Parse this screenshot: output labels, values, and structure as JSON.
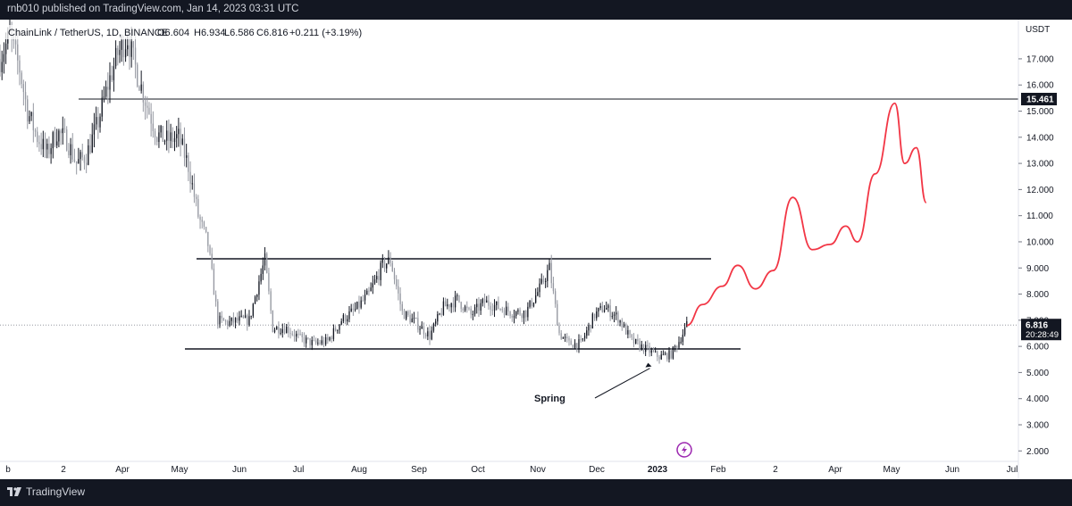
{
  "header": {
    "published_line": "rnb010 published on TradingView.com, Jan 14, 2023 03:31 UTC"
  },
  "symbol_line": {
    "name": "ChainLink / TetherUS, 1D, BINANCE",
    "open": "O6.604",
    "high": "H6.934",
    "low": "L6.586",
    "close": "C6.816",
    "change": "+0.211 (+3.19%)"
  },
  "footer": {
    "brand": "TradingView"
  },
  "colors": {
    "accent": "#f23645",
    "candle_up": "#131722",
    "candle_down": "#9598a1",
    "lightning": "#9c27b0"
  },
  "icons": {
    "brand": "tradingview-logo-icon",
    "lightning": "lightning-icon"
  },
  "chart_data": {
    "type": "candlestick",
    "currency_label": "USDT",
    "y_axis": {
      "range": [
        1.6,
        18.5
      ],
      "ticks": [
        "2.000",
        "3.000",
        "4.000",
        "5.000",
        "6.000",
        "7.000",
        "8.000",
        "9.000",
        "10.000",
        "11.000",
        "12.000",
        "13.000",
        "14.000",
        "15.000",
        "16.000",
        "17.000"
      ]
    },
    "x_axis": {
      "range": [
        "2022-01-29",
        "2023-07-02"
      ],
      "ticks": [
        "b",
        "2",
        "Apr",
        "May",
        "Jun",
        "Jul",
        "Aug",
        "Sep",
        "Oct",
        "Nov",
        "Dec",
        "2023",
        "Feb",
        "2",
        "Apr",
        "May",
        "Jun",
        "Jul"
      ]
    },
    "current_price": {
      "value": 6.816,
      "label": "6.816",
      "countdown": "20:28:49"
    },
    "resistance": {
      "value": 15.461,
      "label": "15.461"
    },
    "range_top": 9.35,
    "range_bottom": 5.9,
    "annotations": [
      {
        "text": "Spring",
        "date": "2022-12-28",
        "value": 5.3
      }
    ],
    "price_path": [
      [
        "2022-01-29",
        17.0
      ],
      [
        "2022-02-03",
        17.9
      ],
      [
        "2022-02-08",
        16.6
      ],
      [
        "2022-02-12",
        15.0
      ],
      [
        "2022-02-17",
        14.0
      ],
      [
        "2022-02-22",
        13.4
      ],
      [
        "2022-02-27",
        14.2
      ],
      [
        "2022-03-04",
        13.9
      ],
      [
        "2022-03-09",
        13.0
      ],
      [
        "2022-03-14",
        13.3
      ],
      [
        "2022-03-20",
        14.6
      ],
      [
        "2022-03-25",
        16.0
      ],
      [
        "2022-03-30",
        17.2
      ],
      [
        "2022-04-04",
        17.8
      ],
      [
        "2022-04-09",
        16.4
      ],
      [
        "2022-04-14",
        15.2
      ],
      [
        "2022-04-19",
        14.1
      ],
      [
        "2022-04-24",
        13.9
      ],
      [
        "2022-04-30",
        14.0
      ],
      [
        "2022-05-05",
        12.9
      ],
      [
        "2022-05-10",
        11.0
      ],
      [
        "2022-05-15",
        9.9
      ],
      [
        "2022-05-20",
        7.0
      ],
      [
        "2022-05-25",
        6.9
      ],
      [
        "2022-05-31",
        7.0
      ],
      [
        "2022-06-05",
        7.0
      ],
      [
        "2022-06-10",
        8.5
      ],
      [
        "2022-06-13",
        9.3
      ],
      [
        "2022-06-17",
        6.7
      ],
      [
        "2022-06-24",
        6.7
      ],
      [
        "2022-07-01",
        6.3
      ],
      [
        "2022-07-08",
        6.1
      ],
      [
        "2022-07-15",
        6.2
      ],
      [
        "2022-07-22",
        7.0
      ],
      [
        "2022-07-29",
        7.4
      ],
      [
        "2022-08-05",
        8.0
      ],
      [
        "2022-08-12",
        9.1
      ],
      [
        "2022-08-16",
        9.3
      ],
      [
        "2022-08-22",
        7.3
      ],
      [
        "2022-08-29",
        6.9
      ],
      [
        "2022-09-05",
        6.4
      ],
      [
        "2022-09-12",
        7.5
      ],
      [
        "2022-09-19",
        7.8
      ],
      [
        "2022-09-26",
        7.2
      ],
      [
        "2022-10-03",
        7.7
      ],
      [
        "2022-10-10",
        7.5
      ],
      [
        "2022-10-17",
        7.3
      ],
      [
        "2022-10-24",
        7.3
      ],
      [
        "2022-10-31",
        8.2
      ],
      [
        "2022-11-05",
        9.0
      ],
      [
        "2022-11-10",
        6.5
      ],
      [
        "2022-11-15",
        6.1
      ],
      [
        "2022-11-21",
        6.1
      ],
      [
        "2022-11-28",
        7.2
      ],
      [
        "2022-12-03",
        7.5
      ],
      [
        "2022-12-10",
        7.1
      ],
      [
        "2022-12-17",
        6.2
      ],
      [
        "2022-12-24",
        5.9
      ],
      [
        "2022-12-31",
        5.6
      ],
      [
        "2023-01-06",
        5.7
      ],
      [
        "2023-01-10",
        6.2
      ],
      [
        "2023-01-14",
        6.8
      ]
    ],
    "projection": {
      "color": "#f23645",
      "points": [
        [
          "2023-01-14",
          6.8
        ],
        [
          "2023-01-22",
          7.6
        ],
        [
          "2023-02-01",
          8.3
        ],
        [
          "2023-02-09",
          9.1
        ],
        [
          "2023-02-18",
          8.2
        ],
        [
          "2023-02-27",
          8.9
        ],
        [
          "2023-03-09",
          11.7
        ],
        [
          "2023-03-19",
          9.7
        ],
        [
          "2023-03-28",
          9.9
        ],
        [
          "2023-04-05",
          10.6
        ],
        [
          "2023-04-11",
          10.0
        ],
        [
          "2023-04-20",
          12.6
        ],
        [
          "2023-04-30",
          15.3
        ],
        [
          "2023-05-05",
          13.0
        ],
        [
          "2023-05-11",
          13.6
        ],
        [
          "2023-05-16",
          11.5
        ]
      ]
    }
  }
}
